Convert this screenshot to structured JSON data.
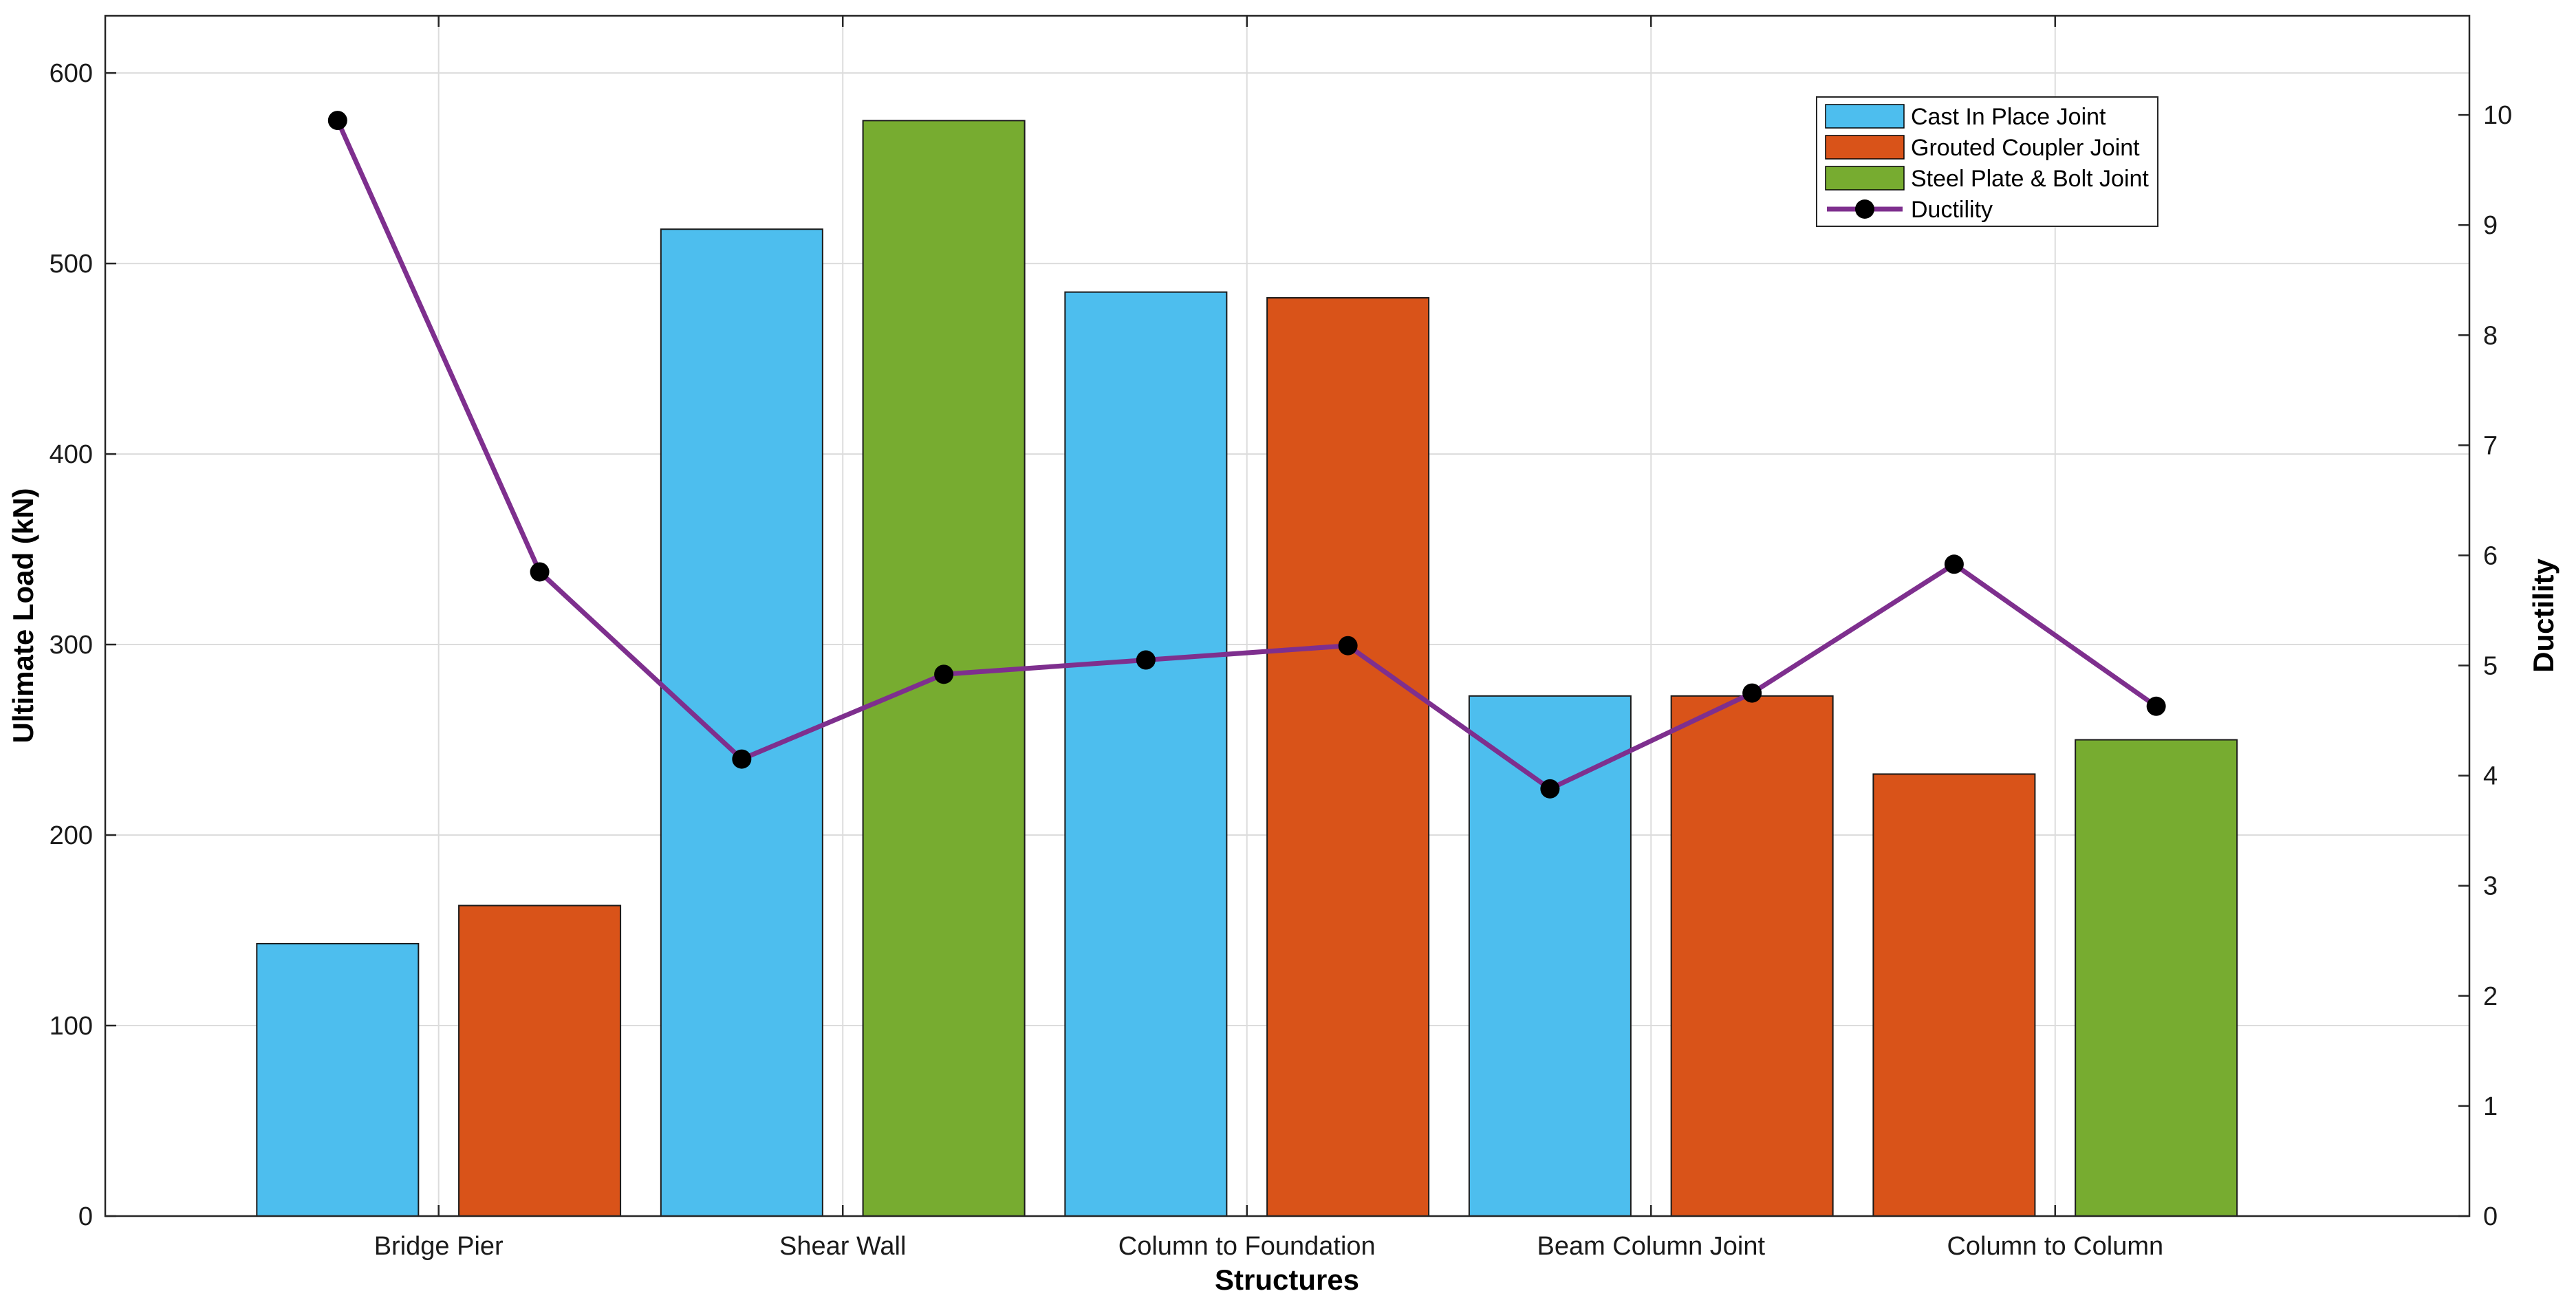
{
  "chart_data": {
    "type": "bar",
    "categories": [
      "Bridge Pier",
      "Shear Wall",
      "Column to Foundation",
      "Beam Column Joint",
      "Column to Column"
    ],
    "xlabel": "Structures",
    "ylabel": "Ultimate Load (kN)",
    "y2label": "Ductility",
    "ylim": [
      0,
      630
    ],
    "y2lim": [
      0,
      10.9
    ],
    "yticks": [
      0,
      100,
      200,
      300,
      400,
      500,
      600
    ],
    "y2ticks": [
      0,
      1,
      2,
      3,
      4,
      5,
      6,
      7,
      8,
      9,
      10
    ],
    "grid": true,
    "legend_position": "top-right",
    "series": [
      {
        "name": "Cast In Place Joint",
        "color": "#4DBEEE"
      },
      {
        "name": "Grouted Coupler Joint",
        "color": "#D95319"
      },
      {
        "name": "Steel Plate & Bolt Joint",
        "color": "#77AC30"
      }
    ],
    "bars": [
      {
        "category": "Bridge Pier",
        "series": "Cast In Place Joint",
        "value": 143
      },
      {
        "category": "Bridge Pier",
        "series": "Grouted Coupler Joint",
        "value": 163
      },
      {
        "category": "Shear Wall",
        "series": "Cast In Place Joint",
        "value": 518
      },
      {
        "category": "Shear Wall",
        "series": "Steel Plate & Bolt Joint",
        "value": 575
      },
      {
        "category": "Column to Foundation",
        "series": "Cast In Place Joint",
        "value": 485
      },
      {
        "category": "Column to Foundation",
        "series": "Grouted Coupler Joint",
        "value": 482
      },
      {
        "category": "Beam Column Joint",
        "series": "Cast In Place Joint",
        "value": 273
      },
      {
        "category": "Beam Column Joint",
        "series": "Grouted Coupler Joint",
        "value": 273
      },
      {
        "category": "Column to Column",
        "series": "Grouted Coupler Joint",
        "value": 232
      },
      {
        "category": "Column to Column",
        "series": "Steel Plate & Bolt Joint",
        "value": 250
      }
    ],
    "line": {
      "name": "Ductility",
      "color": "#7E2F8E",
      "marker_color": "#000000",
      "values": [
        9.95,
        5.85,
        4.15,
        4.92,
        5.05,
        5.18,
        3.88,
        4.75,
        5.92,
        4.63
      ]
    }
  }
}
